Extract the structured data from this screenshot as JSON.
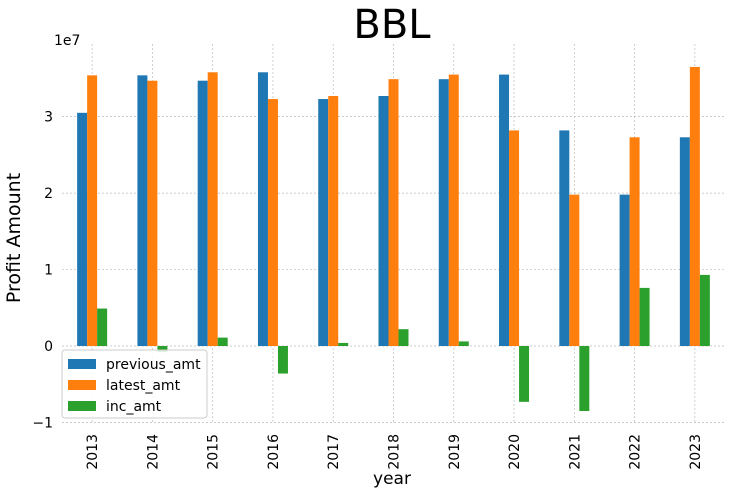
{
  "chart_data": {
    "type": "bar",
    "title": "BBL",
    "xlabel": "year",
    "ylabel": "Profit Amount",
    "y_offset_label": "1e7",
    "y_scale": 10000000,
    "ylim": [
      -1.02,
      3.95
    ],
    "yticks": [
      -1,
      0,
      1,
      2,
      3
    ],
    "ytick_labels": [
      "−1",
      "0",
      "1",
      "2",
      "3"
    ],
    "grid": true,
    "legend_position": "lower-left",
    "categories": [
      "2013",
      "2014",
      "2015",
      "2016",
      "2017",
      "2018",
      "2019",
      "2020",
      "2021",
      "2022",
      "2023"
    ],
    "series": [
      {
        "name": "previous_amt",
        "color": "#1f77b4",
        "values": [
          3.05,
          3.54,
          3.47,
          3.58,
          3.23,
          3.27,
          3.49,
          3.55,
          2.82,
          1.98,
          2.73
        ]
      },
      {
        "name": "latest_amt",
        "color": "#ff7f0e",
        "values": [
          3.54,
          3.47,
          3.58,
          3.23,
          3.27,
          3.49,
          3.55,
          2.82,
          1.98,
          2.73,
          3.65
        ]
      },
      {
        "name": "inc_amt",
        "color": "#2ca02c",
        "values": [
          0.49,
          -0.08,
          0.11,
          -0.36,
          0.04,
          0.22,
          0.06,
          -0.73,
          -0.85,
          0.76,
          0.93
        ]
      }
    ]
  }
}
